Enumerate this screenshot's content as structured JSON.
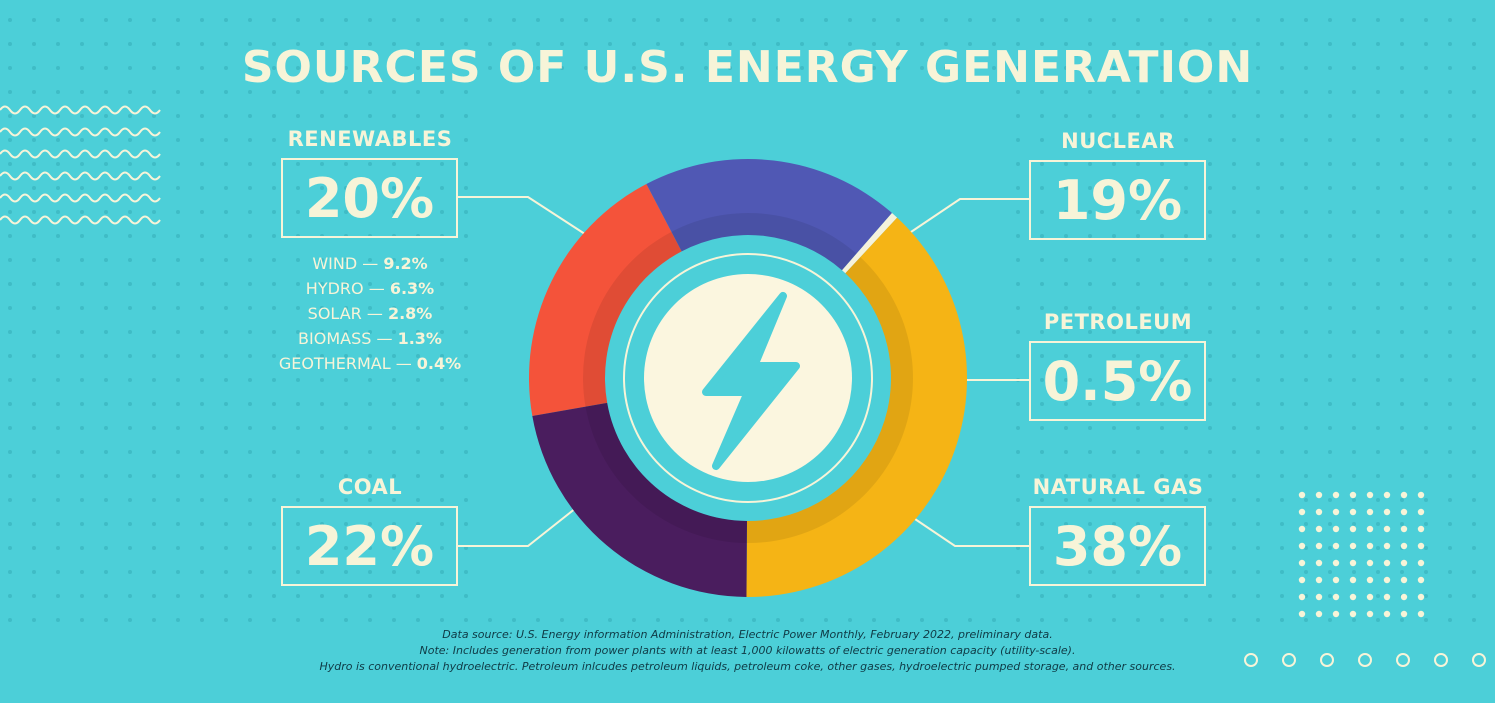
{
  "chart_data": {
    "type": "pie",
    "title": "SOURCES OF U.S. ENERGY GENERATION",
    "slices": [
      {
        "label": "RENEWABLES",
        "value": 20,
        "display": "20%",
        "color": "#f4533a"
      },
      {
        "label": "NUCLEAR",
        "value": 19,
        "display": "19%",
        "color": "#5058b4"
      },
      {
        "label": "PETROLEUM",
        "value": 0.5,
        "display": "0.5%",
        "color": "#f5f2dc"
      },
      {
        "label": "NATURAL GAS",
        "value": 38,
        "display": "38%",
        "color": "#f5b415"
      },
      {
        "label": "COAL",
        "value": 22,
        "display": "22%",
        "color": "#4a1d5e"
      }
    ],
    "renewables_breakdown": [
      {
        "label": "WIND",
        "value": "9.2%"
      },
      {
        "label": "HYDRO",
        "value": "6.3%"
      },
      {
        "label": "SOLAR",
        "value": "2.8%"
      },
      {
        "label": "BIOMASS",
        "value": "1.3%"
      },
      {
        "label": "GEOTHERMAL",
        "value": "0.4%"
      }
    ],
    "notes": [
      "Data source: U.S. Energy information Administration, Electric Power Monthly, February 2022, preliminary data.",
      "Note: Includes generation from power plants with at least 1,000 kilowatts of electric generation capacity (utility-scale).",
      "Hydro is conventional hydroelectric. Petroleum inlcudes petroleum liquids, petroleum coke, other gases, hydroelectric pumped storage, and other sources."
    ]
  },
  "center_icon": "lightning-bolt-icon",
  "colors": {
    "background": "#4ccfd8",
    "text": "#f7f4d8",
    "center_disc": "#fbf6df"
  }
}
